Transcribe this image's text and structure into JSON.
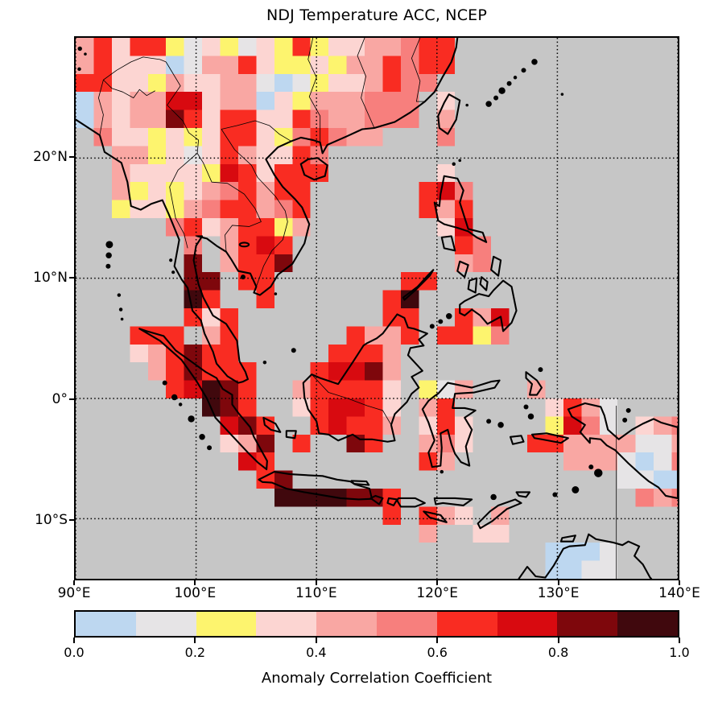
{
  "figure": {
    "title": "NDJ Temperature ACC, NCEP"
  },
  "chart_data": {
    "type": "heatmap",
    "title": "NDJ Temperature ACC, NCEP",
    "subtitle": "",
    "projection": "equirectangular map of Southeast Asia / Maritime Continent",
    "extent": {
      "lon": [
        90,
        140
      ],
      "lat": [
        -15,
        30
      ]
    },
    "grid_resolution_deg": 1.5,
    "ocean_color": "#c6c6c6",
    "coast_color": "#000000",
    "grid_on": true,
    "gridline_style": "dotted",
    "gridlines": {
      "lon": [
        90,
        100,
        110,
        120,
        130,
        140
      ],
      "lat": [
        20,
        10,
        0,
        -10
      ]
    },
    "xticks": [
      {
        "value": 90,
        "label": "90°E"
      },
      {
        "value": 100,
        "label": "100°E"
      },
      {
        "value": 110,
        "label": "110°E"
      },
      {
        "value": 120,
        "label": "120°E"
      },
      {
        "value": 130,
        "label": "130°E"
      },
      {
        "value": 140,
        "label": "140°E"
      }
    ],
    "yticks": [
      {
        "value": 20,
        "label": "20°N"
      },
      {
        "value": 10,
        "label": "10°N"
      },
      {
        "value": 0,
        "label": "0°"
      },
      {
        "value": -10,
        "label": "10°S"
      }
    ],
    "colorbar": {
      "label": "Anomaly Correlation Coefficient",
      "orientation": "horizontal",
      "ticks": [
        "0.0",
        "0.2",
        "0.4",
        "0.6",
        "0.8",
        "1.0"
      ],
      "tick_values": [
        0.0,
        0.2,
        0.4,
        0.6,
        0.8,
        1.0
      ]
    },
    "bins": [
      {
        "range": [
          0.0,
          0.1
        ],
        "color": "#bdd7f0"
      },
      {
        "range": [
          0.1,
          0.2
        ],
        "color": "#e6e4e6"
      },
      {
        "range": [
          0.2,
          0.3
        ],
        "color": "#fdf46e"
      },
      {
        "range": [
          0.3,
          0.4
        ],
        "color": "#fcd5d2"
      },
      {
        "range": [
          0.4,
          0.5
        ],
        "color": "#f9a7a3"
      },
      {
        "range": [
          0.5,
          0.6
        ],
        "color": "#f77f7d"
      },
      {
        "range": [
          0.6,
          0.7
        ],
        "color": "#f92c22"
      },
      {
        "range": [
          0.7,
          0.8
        ],
        "color": "#d80a10"
      },
      {
        "range": [
          0.8,
          0.9
        ],
        "color": "#7e070c"
      },
      {
        "range": [
          0.9,
          1.0
        ],
        "color": "#40080d"
      }
    ],
    "cells": {
      "description": "ACC on a 1.5-degree grid. 30 rows from 30N down to 15S, 34 columns from 90E to 141E (last column clipped at 140E). '.' = no data (ocean/unmasked), digit d = bin index d (value in [d/10,(d+1)/10]).",
      "lon_start": 90,
      "lat_start": 30,
      "dlon": 1.5,
      "dlat": -1.5,
      "rows": [
        "463662132132623344566.............",
        "463330144632232446566.............",
        "66332433441012334655..............",
        "0434477344032444555.3.............",
        "0434486366336544555.4.............",
        ".5332323663256544...5.............",
        "..442313643365....................",
        "..433332763666......3.............",
        "..42323456466......675............",
        "..23324566456......646............",
        ".....56346624.......37............",
        "......5.4676.........65...........",
        "......8.4668.........45...........",
        "......88.66.......66..............",
        "......96..6......69...............",
        "......636........66..647..........",
        "...666.46......6446.6625..........",
        "...346866.....6664................",
        "....468666...67784................",
        ".....67986..466663.214...4........",
        ".......986..367763.46.....3641....",
        "........786..67664.363....2751.345",
        "........348.6..86..453...664444114",
        ".........76........64......4441015",
        "..........68..................1100",
        "...........9999886.............545",
        ".................6.643.4..........",
        "...................4..33..........",
        "..........................0001....",
        "..........................0011...."
      ]
    }
  }
}
